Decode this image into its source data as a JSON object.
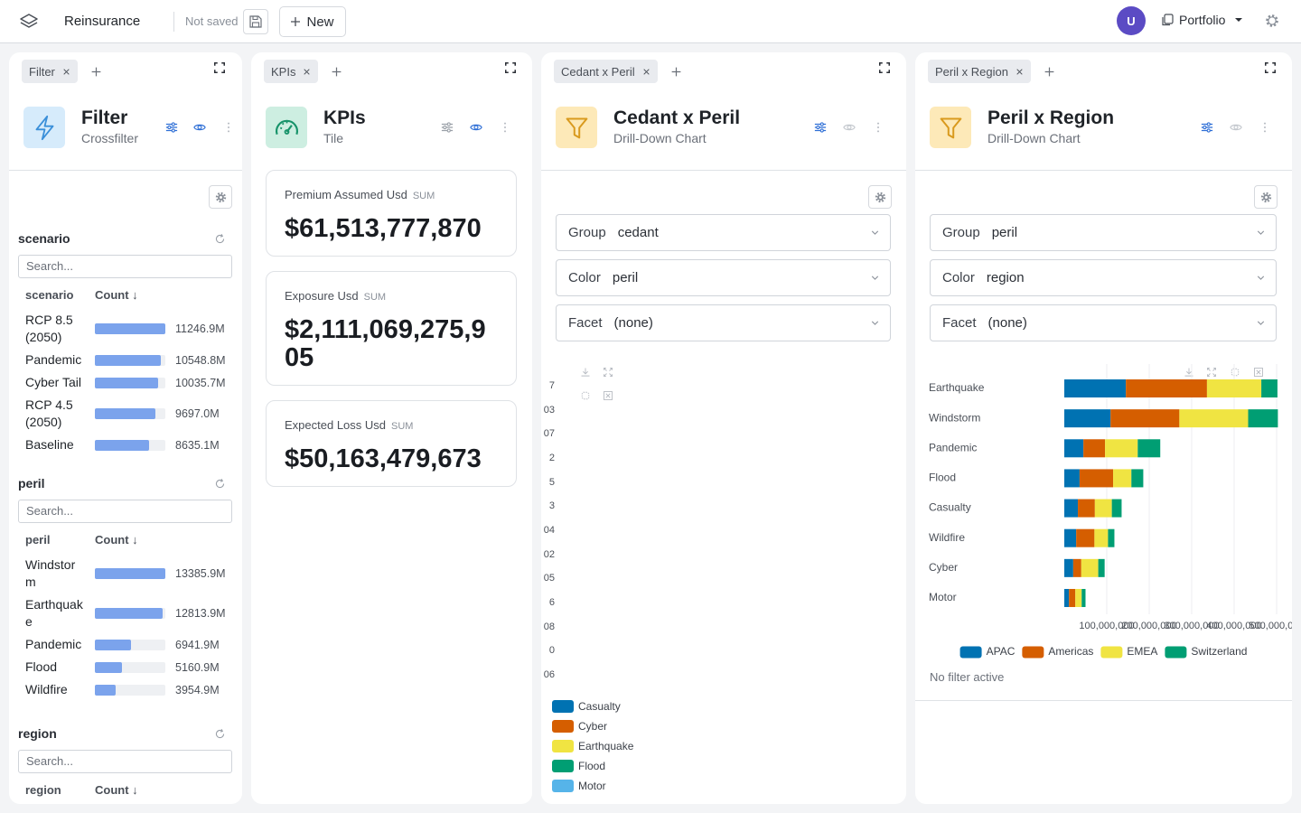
{
  "topbar": {
    "app_name": "Reinsurance",
    "save_status": "Not saved",
    "new_button": "New",
    "avatar": "U",
    "workspace": "Portfolio"
  },
  "panels": [
    {
      "tab": "Filter",
      "title": "Filter",
      "subtitle": "Crossfilter",
      "sections": [
        {
          "name": "scenario",
          "search_placeholder": "Search...",
          "column_label": "scenario",
          "count_label": "Count ↓",
          "rows": [
            {
              "label": "RCP 8.5 (2050)",
              "value": 11246.9,
              "value_label": "11246.9M"
            },
            {
              "label": "Pandemic",
              "value": 10548.8,
              "value_label": "10548.8M"
            },
            {
              "label": "Cyber Tail",
              "value": 10035.7,
              "value_label": "10035.7M"
            },
            {
              "label": "RCP 4.5 (2050)",
              "value": 9697.0,
              "value_label": "9697.0M"
            },
            {
              "label": "Baseline",
              "value": 8635.1,
              "value_label": "8635.1M"
            }
          ]
        },
        {
          "name": "peril",
          "search_placeholder": "Search...",
          "column_label": "peril",
          "count_label": "Count ↓",
          "rows": [
            {
              "label": "Windstorm",
              "value": 13385.9,
              "value_label": "13385.9M"
            },
            {
              "label": "Earthquake",
              "value": 12813.9,
              "value_label": "12813.9M"
            },
            {
              "label": "Pandemic",
              "value": 6941.9,
              "value_label": "6941.9M"
            },
            {
              "label": "Flood",
              "value": 5160.9,
              "value_label": "5160.9M"
            },
            {
              "label": "Wildfire",
              "value": 3954.9,
              "value_label": "3954.9M"
            }
          ]
        },
        {
          "name": "region",
          "search_placeholder": "Search...",
          "column_label": "region",
          "count_label": "Count ↓"
        }
      ]
    },
    {
      "tab": "KPIs",
      "title": "KPIs",
      "subtitle": "Tile",
      "cards": [
        {
          "label": "Premium Assumed Usd",
          "aggregation": "SUM",
          "value": "$61,513,777,870"
        },
        {
          "label": "Exposure Usd",
          "aggregation": "SUM",
          "value": "$2,111,069,275,905"
        },
        {
          "label": "Expected Loss Usd",
          "aggregation": "SUM",
          "value": "$50,163,479,673"
        }
      ]
    },
    {
      "tab": "Cedant x Peril",
      "title": "Cedant x Peril",
      "subtitle": "Drill-Down Chart",
      "controls": [
        {
          "label": "Group",
          "value": "cedant"
        },
        {
          "label": "Color",
          "value": "peril"
        },
        {
          "label": "Facet",
          "value": "(none)"
        }
      ],
      "axis_labels": [
        "7",
        "03",
        "07",
        "2",
        "5",
        "3",
        "04",
        "02",
        "05",
        "6",
        "08",
        "0",
        "06"
      ],
      "legend": [
        {
          "name": "Casualty",
          "color": "#0072b2"
        },
        {
          "name": "Cyber",
          "color": "#d55e00"
        },
        {
          "name": "Earthquake",
          "color": "#f0e442"
        },
        {
          "name": "Flood",
          "color": "#009e73"
        },
        {
          "name": "Motor",
          "color": "#56b4e9"
        }
      ]
    },
    {
      "tab": "Peril x Region",
      "title": "Peril x Region",
      "subtitle": "Drill-Down Chart",
      "controls": [
        {
          "label": "Group",
          "value": "peril"
        },
        {
          "label": "Color",
          "value": "region"
        },
        {
          "label": "Facet",
          "value": "(none)"
        }
      ],
      "status": "No filter active"
    }
  ],
  "chart_data": {
    "type": "bar",
    "orientation": "horizontal",
    "stacked": true,
    "categories": [
      "Earthquake",
      "Windstorm",
      "Pandemic",
      "Flood",
      "Casualty",
      "Wildfire",
      "Cyber",
      "Motor"
    ],
    "series": [
      {
        "name": "APAC",
        "color": "#0072b2",
        "values": [
          145000000,
          109000000,
          45000000,
          36000000,
          32000000,
          28000000,
          21000000,
          11000000
        ]
      },
      {
        "name": "Americas",
        "color": "#d55e00",
        "values": [
          191000000,
          162000000,
          51000000,
          79000000,
          40000000,
          43000000,
          19000000,
          15000000
        ]
      },
      {
        "name": "EMEA",
        "color": "#f0e442",
        "values": [
          128000000,
          162000000,
          77000000,
          43000000,
          40000000,
          32000000,
          40000000,
          15000000
        ]
      },
      {
        "name": "Switzerland",
        "color": "#009e73",
        "values": [
          38000000,
          70000000,
          53000000,
          28000000,
          23000000,
          15000000,
          15000000,
          9000000
        ]
      }
    ],
    "xlim": [
      0,
      500000000
    ],
    "xticks": [
      {
        "value": 100000000,
        "label": "100,000,000"
      },
      {
        "value": 200000000,
        "label": "200,000,000"
      },
      {
        "value": 300000000,
        "label": "300,000,000"
      },
      {
        "value": 400000000,
        "label": "400,000,000"
      },
      {
        "value": 500000000,
        "label": "500,000,000"
      }
    ],
    "grid": true,
    "legend": "bottom"
  }
}
